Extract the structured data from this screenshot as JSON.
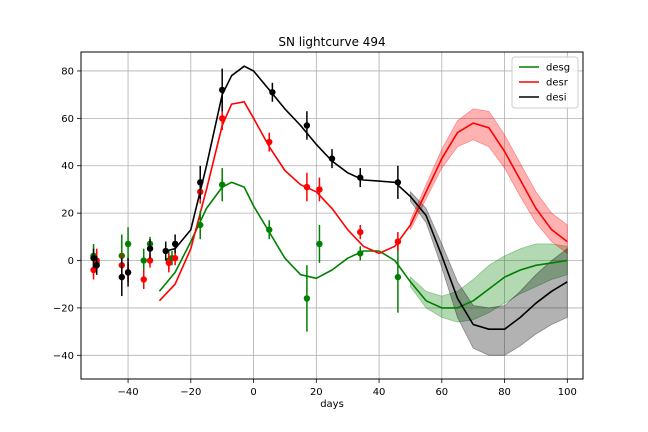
{
  "chart_data": {
    "type": "line",
    "title": "SN lightcurve 494",
    "xlabel": "days",
    "ylabel": "",
    "xlim": [
      -55,
      105
    ],
    "ylim": [
      -50,
      88
    ],
    "xticks": [
      -40,
      -20,
      0,
      20,
      40,
      60,
      80,
      100
    ],
    "yticks": [
      -40,
      -20,
      0,
      20,
      40,
      60,
      80
    ],
    "xtick_labels": [
      "−40",
      "−20",
      "0",
      "20",
      "40",
      "60",
      "80",
      "100"
    ],
    "ytick_labels": [
      "−40",
      "−20",
      "0",
      "20",
      "40",
      "60",
      "80"
    ],
    "grid": true,
    "legend_position": "top-right",
    "series": [
      {
        "name": "desg",
        "color": "#008000",
        "band_color": "#008000",
        "model": {
          "x": [
            -30,
            -25,
            -20,
            -15,
            -10,
            -7,
            -3,
            0,
            5,
            10,
            15,
            20,
            25,
            30,
            35,
            40,
            45,
            50,
            55,
            60,
            65,
            70,
            75,
            80,
            85,
            90,
            95,
            100
          ],
          "y": [
            -13,
            -5,
            8,
            22,
            31,
            33,
            31,
            23,
            12,
            1,
            -6,
            -7.5,
            -4,
            1,
            4,
            4,
            0,
            -9,
            -17,
            -20,
            -20,
            -17,
            -12,
            -7,
            -4,
            -2,
            -1,
            0
          ],
          "lower": [
            null,
            null,
            null,
            null,
            null,
            null,
            null,
            null,
            null,
            null,
            null,
            null,
            null,
            null,
            null,
            null,
            null,
            -11,
            -20,
            -24,
            -26,
            -25,
            -22,
            -18,
            -14,
            -11,
            -8,
            -6
          ],
          "upper": [
            null,
            null,
            null,
            null,
            null,
            null,
            null,
            null,
            null,
            null,
            null,
            null,
            null,
            null,
            null,
            null,
            null,
            -7,
            -13,
            -15,
            -13,
            -8,
            -2,
            2,
            5,
            7,
            7,
            6
          ]
        },
        "points": {
          "x": [
            -51,
            -50,
            -42,
            -40,
            -35,
            -33,
            -27,
            -26,
            -17,
            -10,
            5,
            17,
            21,
            34,
            46
          ],
          "y": [
            2,
            -1,
            2,
            7,
            0,
            7,
            0,
            1,
            15,
            32,
            13,
            -16,
            7,
            3,
            -7
          ],
          "err": [
            5,
            5,
            9,
            7,
            5,
            3,
            4,
            3,
            6,
            7,
            4,
            14,
            8,
            3,
            15
          ]
        }
      },
      {
        "name": "desr",
        "color": "#ff0000",
        "band_color": "#ff0000",
        "model": {
          "x": [
            -30,
            -25,
            -20,
            -15,
            -10,
            -7,
            -3,
            0,
            5,
            10,
            15,
            20,
            25,
            30,
            35,
            40,
            45,
            50,
            55,
            60,
            65,
            70,
            75,
            80,
            85,
            90,
            95,
            100
          ],
          "y": [
            -17,
            -10,
            5,
            30,
            57,
            66,
            67,
            60,
            48,
            38,
            32,
            29,
            22,
            13,
            6,
            3,
            6,
            15,
            29,
            43,
            54,
            58,
            56,
            46,
            34,
            22,
            13,
            8
          ],
          "lower": [
            null,
            null,
            null,
            null,
            null,
            null,
            null,
            null,
            null,
            null,
            null,
            null,
            null,
            null,
            null,
            null,
            null,
            13,
            26,
            39,
            48,
            51,
            48,
            39,
            27,
            16,
            8,
            3
          ],
          "upper": [
            null,
            null,
            null,
            null,
            null,
            null,
            null,
            null,
            null,
            null,
            null,
            null,
            null,
            null,
            null,
            null,
            null,
            17,
            32,
            47,
            59,
            64,
            63,
            53,
            41,
            29,
            20,
            15
          ]
        },
        "points": {
          "x": [
            -51,
            -50,
            -42,
            -40,
            -35,
            -33,
            -27,
            -25,
            -17,
            -10,
            5,
            17,
            21,
            34,
            46
          ],
          "y": [
            -4,
            0,
            -2,
            -5,
            -8,
            0,
            -1,
            1,
            29,
            60,
            50,
            31,
            30,
            12,
            8
          ],
          "err": [
            4,
            5,
            5,
            4,
            4,
            3,
            4,
            3,
            5,
            5,
            4,
            6,
            5,
            3,
            4
          ]
        }
      },
      {
        "name": "desi",
        "color": "#000000",
        "band_color": "#000000",
        "model": {
          "x": [
            -28,
            -25,
            -20,
            -15,
            -10,
            -7,
            -3,
            0,
            5,
            10,
            15,
            20,
            25,
            30,
            35,
            40,
            45,
            50,
            55,
            60,
            65,
            70,
            75,
            80,
            85,
            90,
            95,
            100
          ],
          "y": [
            4,
            5,
            13,
            40,
            70,
            78,
            82,
            80,
            72,
            64,
            57,
            49,
            42,
            37,
            34,
            33.5,
            33,
            27,
            19,
            2,
            -16,
            -27,
            -29,
            -29,
            -24,
            -18,
            -13,
            -9
          ],
          "lower": [
            null,
            null,
            null,
            null,
            null,
            null,
            null,
            null,
            null,
            null,
            null,
            null,
            null,
            null,
            null,
            null,
            null,
            25,
            16,
            -3,
            -24,
            -37,
            -40,
            -40,
            -36,
            -31,
            -27,
            -24
          ],
          "upper": [
            null,
            null,
            null,
            null,
            null,
            null,
            null,
            null,
            null,
            null,
            null,
            null,
            null,
            null,
            null,
            null,
            null,
            29,
            22,
            7,
            -9,
            -19,
            -20,
            -19,
            -13,
            -6,
            0,
            5
          ]
        },
        "points": {
          "x": [
            -51,
            -50,
            -42,
            -40,
            -33,
            -28,
            -25,
            -17,
            -10,
            6,
            17,
            25,
            34,
            46
          ],
          "y": [
            1,
            -2,
            -7,
            -5,
            5,
            4,
            7,
            33,
            72,
            71,
            57,
            43,
            35,
            33
          ],
          "err": [
            4,
            4,
            8,
            6,
            4,
            4,
            4,
            7,
            9,
            4,
            6,
            4,
            4,
            7
          ]
        }
      }
    ]
  }
}
